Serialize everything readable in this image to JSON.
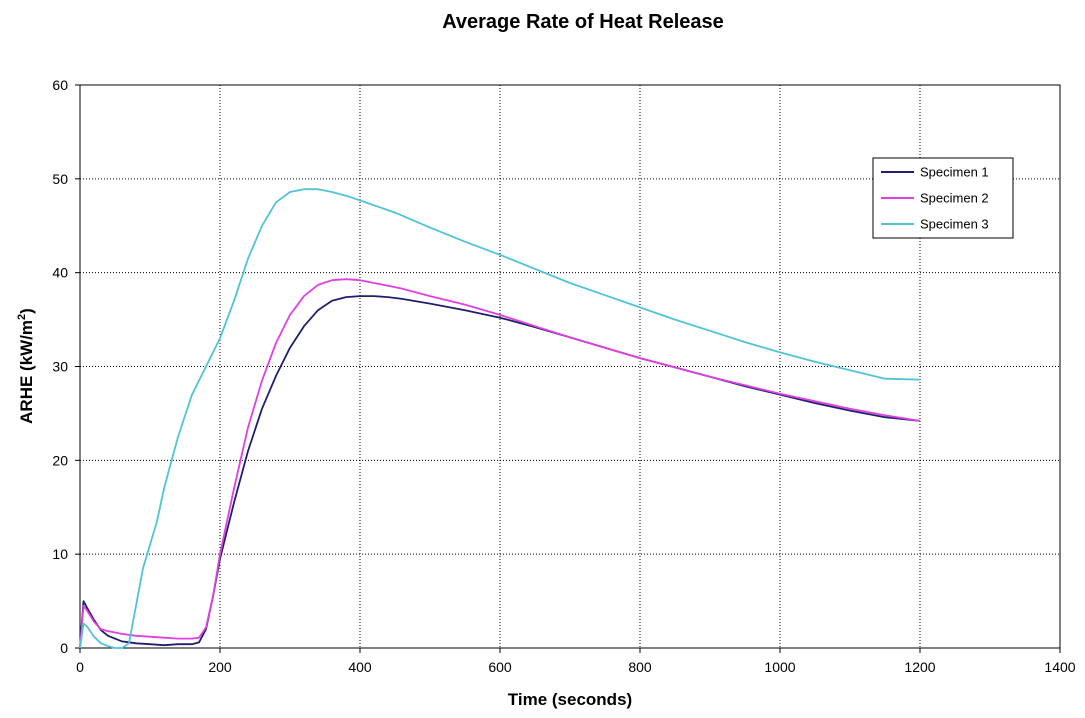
{
  "chart_data": {
    "type": "line",
    "title": "Average Rate of Heat Release",
    "xlabel": "Time (seconds)",
    "ylabel_main": "ARHE (kW/m",
    "ylabel_sup": "2",
    "ylabel_close": ")",
    "xlim": [
      0,
      1400
    ],
    "ylim": [
      0,
      60
    ],
    "xticks": [
      0,
      200,
      400,
      600,
      800,
      1000,
      1200,
      1400
    ],
    "yticks": [
      0,
      10,
      20,
      30,
      40,
      50,
      60
    ],
    "grid": true,
    "legend_position": "top-right",
    "series": [
      {
        "name": "Specimen 1",
        "color": "#1f1f6e",
        "x": [
          0,
          5,
          10,
          20,
          30,
          40,
          60,
          80,
          100,
          120,
          140,
          160,
          170,
          180,
          190,
          200,
          220,
          240,
          260,
          280,
          300,
          320,
          340,
          360,
          380,
          400,
          420,
          440,
          460,
          500,
          550,
          600,
          650,
          700,
          750,
          800,
          850,
          900,
          950,
          1000,
          1050,
          1100,
          1150,
          1200
        ],
        "y": [
          0,
          5.0,
          4.3,
          3.0,
          1.9,
          1.3,
          0.7,
          0.5,
          0.4,
          0.3,
          0.4,
          0.4,
          0.6,
          2.0,
          5.5,
          9.5,
          15.5,
          21.0,
          25.5,
          29.0,
          32.0,
          34.3,
          36.0,
          37.0,
          37.4,
          37.5,
          37.5,
          37.4,
          37.2,
          36.7,
          36.0,
          35.2,
          34.2,
          33.1,
          32.0,
          30.9,
          29.9,
          28.9,
          27.9,
          27.0,
          26.1,
          25.3,
          24.6,
          24.2
        ]
      },
      {
        "name": "Specimen 2",
        "color": "#e040e0",
        "x": [
          0,
          5,
          10,
          20,
          30,
          40,
          60,
          80,
          100,
          120,
          140,
          160,
          170,
          180,
          190,
          200,
          220,
          240,
          260,
          280,
          300,
          320,
          340,
          360,
          380,
          400,
          420,
          440,
          460,
          500,
          550,
          600,
          650,
          700,
          750,
          800,
          850,
          900,
          950,
          1000,
          1050,
          1100,
          1150,
          1200
        ],
        "y": [
          0,
          4.5,
          4.0,
          2.8,
          2.0,
          1.8,
          1.5,
          1.3,
          1.2,
          1.1,
          1.0,
          1.0,
          1.1,
          2.2,
          5.5,
          10.0,
          17.0,
          23.5,
          28.5,
          32.5,
          35.5,
          37.5,
          38.7,
          39.2,
          39.3,
          39.2,
          38.9,
          38.6,
          38.3,
          37.5,
          36.6,
          35.5,
          34.3,
          33.1,
          32.0,
          30.9,
          29.9,
          28.9,
          28.0,
          27.1,
          26.3,
          25.5,
          24.8,
          24.2
        ]
      },
      {
        "name": "Specimen 3",
        "color": "#4fc4d8",
        "x": [
          0,
          5,
          10,
          20,
          30,
          40,
          50,
          60,
          70,
          80,
          90,
          100,
          110,
          120,
          140,
          160,
          180,
          200,
          220,
          240,
          260,
          280,
          300,
          320,
          340,
          360,
          380,
          400,
          450,
          500,
          550,
          600,
          650,
          700,
          750,
          800,
          850,
          900,
          950,
          1000,
          1050,
          1100,
          1150,
          1200
        ],
        "y": [
          0,
          2.6,
          2.3,
          1.2,
          0.5,
          0.2,
          0.0,
          0.0,
          0.5,
          4.5,
          8.5,
          11.0,
          13.5,
          17.0,
          22.5,
          27.0,
          30.0,
          33.0,
          37.0,
          41.5,
          45.0,
          47.5,
          48.6,
          48.9,
          48.9,
          48.6,
          48.2,
          47.7,
          46.4,
          44.8,
          43.3,
          41.9,
          40.4,
          38.9,
          37.6,
          36.3,
          35.0,
          33.8,
          32.6,
          31.5,
          30.5,
          29.6,
          28.7,
          28.6
        ]
      }
    ]
  }
}
